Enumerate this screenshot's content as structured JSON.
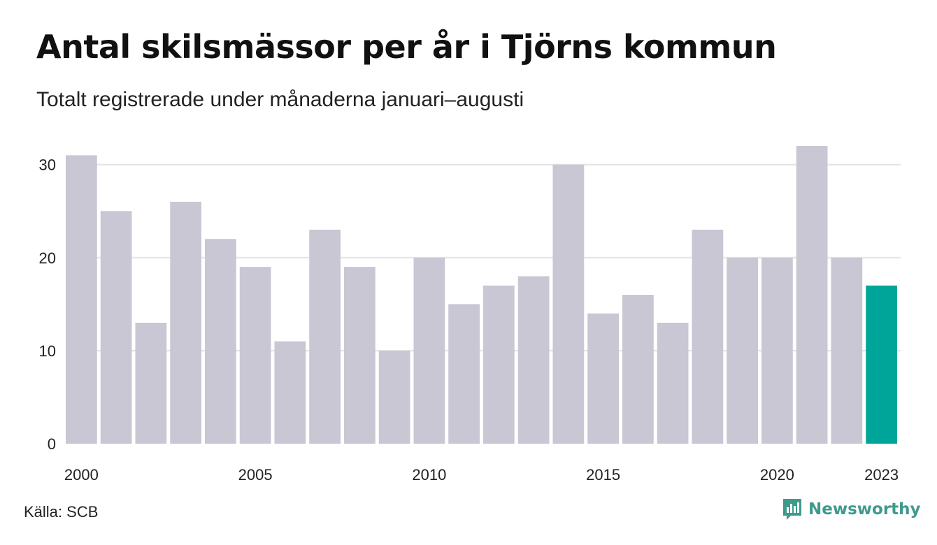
{
  "header": {
    "title": "Antal skilsmässor per år i Tjörns kommun",
    "subtitle": "Totalt registrerade under månaderna januari–augusti"
  },
  "footer": {
    "source": "Källa: SCB",
    "brand": "Newsworthy",
    "brand_icon": "newsworthy-logo-icon"
  },
  "colors": {
    "bar": "#c9c7d4",
    "highlight": "#00a59a",
    "grid": "#e3e3e8",
    "axis_text": "#222222",
    "brand": "#3f9a8c"
  },
  "chart_data": {
    "type": "bar",
    "categories": [
      2000,
      2001,
      2002,
      2003,
      2004,
      2005,
      2006,
      2007,
      2008,
      2009,
      2010,
      2011,
      2012,
      2013,
      2014,
      2015,
      2016,
      2017,
      2018,
      2019,
      2020,
      2021,
      2022,
      2023
    ],
    "values": [
      31,
      25,
      13,
      26,
      22,
      19,
      11,
      23,
      19,
      10,
      20,
      15,
      17,
      18,
      30,
      14,
      16,
      13,
      23,
      20,
      20,
      32,
      20,
      17
    ],
    "highlight_category": 2023,
    "xticks": [
      "2000",
      "2005",
      "2010",
      "2015",
      "2020",
      "2023"
    ],
    "yticks": [
      0,
      10,
      20,
      30
    ],
    "ylim": [
      0,
      32
    ],
    "grid": true,
    "legend": "none",
    "title": "Antal skilsmässor per år i Tjörns kommun",
    "xlabel": "",
    "ylabel": ""
  }
}
